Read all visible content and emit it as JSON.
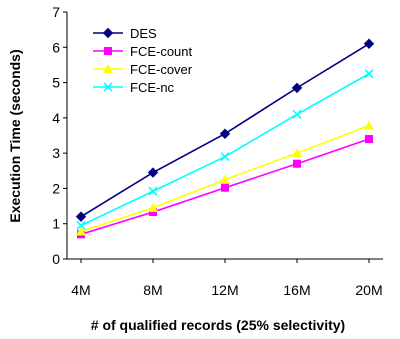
{
  "chart_data": {
    "type": "line",
    "categories": [
      "4M",
      "8M",
      "12M",
      "16M",
      "20M"
    ],
    "xlabel": "# of qualified records (25% selectivity)",
    "ylabel": "Execution Time (seconds)",
    "ylim": [
      0,
      7
    ],
    "yticks": [
      "0",
      "1",
      "2",
      "3",
      "4",
      "5",
      "6",
      "7"
    ],
    "grid": false,
    "legend_position": "top-left",
    "series": [
      {
        "name": "DES",
        "color": "#000080",
        "marker": "diamond",
        "values": [
          1.2,
          2.45,
          3.55,
          4.85,
          6.1
        ]
      },
      {
        "name": "FCE-count",
        "color": "#ff00ff",
        "marker": "square",
        "values": [
          0.7,
          1.33,
          2.02,
          2.7,
          3.4
        ]
      },
      {
        "name": "FCE-cover",
        "color": "#ffff00",
        "marker": "triangle",
        "values": [
          0.78,
          1.45,
          2.25,
          3.0,
          3.78
        ]
      },
      {
        "name": "FCE-nc",
        "color": "#00ffff",
        "marker": "x",
        "values": [
          0.95,
          1.92,
          2.9,
          4.1,
          5.25
        ]
      }
    ]
  }
}
